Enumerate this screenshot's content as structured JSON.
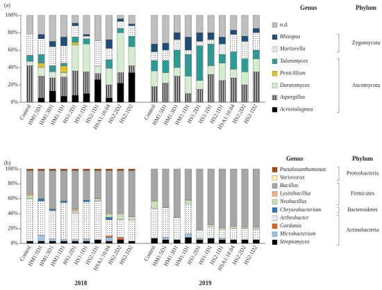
{
  "chart_data": [
    {
      "type": "stacked_bar",
      "label": "(a)",
      "legend_title": "Genus",
      "phylum_title": "Phylum",
      "categories": [
        "Control",
        "HM1:5D1",
        "HM1:3D1",
        "HM1:1D1",
        "HS1:2D1",
        "HS1:1D1",
        "HS2:1D1",
        "HSA1:10.04",
        "HS2:2D2",
        "HS2:1D2",
        "Control",
        "HM1:5D1",
        "HM1:3D1",
        "HM1:1D1",
        "HS1:2D1",
        "HS1:1D1",
        "HS2:1D1",
        "HSA1:10.04",
        "HS2:2D2",
        "HS2:1D2"
      ],
      "ylim": [
        0,
        100
      ],
      "yticks": [
        {
          "value": 0,
          "label": "0%"
        },
        {
          "value": 20,
          "label": "20%"
        },
        {
          "value": 40,
          "label": "40%"
        },
        {
          "value": 60,
          "label": "60%"
        },
        {
          "value": 80,
          "label": "80%"
        },
        {
          "value": 100,
          "label": "100%"
        }
      ],
      "series": [
        {
          "name": "Acrostalagmus",
          "color": "#000000",
          "values": [
            0,
            5,
            13,
            7,
            8,
            10,
            26,
            5,
            22,
            34,
            0,
            0,
            0,
            0,
            0,
            0,
            0,
            0,
            0,
            0
          ]
        },
        {
          "name": "Aspergillus",
          "color": "#a6a6a6",
          "hatch": "vlines",
          "values": [
            42,
            25,
            15,
            22,
            28,
            25,
            7,
            15,
            12,
            8,
            18,
            22,
            30,
            10,
            15,
            32,
            25,
            28,
            20,
            35
          ]
        },
        {
          "name": "Doratomyces",
          "color": "#d4edcf",
          "values": [
            5,
            10,
            7,
            5,
            30,
            32,
            8,
            19,
            46,
            22,
            18,
            12,
            10,
            20,
            10,
            10,
            20,
            10,
            15,
            15
          ]
        },
        {
          "name": "Penicillium",
          "color": "#d9c22e",
          "values": [
            0,
            5,
            0,
            8,
            3,
            0,
            0,
            0,
            0,
            0,
            0,
            0,
            0,
            0,
            0,
            0,
            0,
            0,
            0,
            0
          ]
        },
        {
          "name": "Talaromyces",
          "color": "#2e9a96",
          "values": [
            7,
            10,
            7,
            3,
            6,
            6,
            0,
            10,
            5,
            12,
            12,
            14,
            20,
            25,
            40,
            25,
            10,
            20,
            15,
            10
          ]
        },
        {
          "name": "Mortierella",
          "color": "#ffffff",
          "hatch": "dots",
          "values": [
            25,
            18,
            22,
            20,
            13,
            3,
            30,
            13,
            8,
            12,
            10,
            12,
            12,
            5,
            5,
            5,
            12,
            20,
            20,
            20
          ]
        },
        {
          "name": "Rhizopus",
          "color": "#1f4e79",
          "values": [
            0,
            5,
            6,
            10,
            3,
            2,
            0,
            10,
            3,
            2,
            9,
            8,
            8,
            15,
            10,
            8,
            8,
            5,
            6,
            5
          ]
        },
        {
          "name": "n.d.",
          "color": "#bfbfbf",
          "values": [
            21,
            22,
            30,
            25,
            9,
            22,
            29,
            28,
            4,
            10,
            33,
            32,
            20,
            25,
            20,
            20,
            25,
            17,
            24,
            15
          ]
        }
      ],
      "phyla": [
        "Zygomycota",
        "Ascomycota"
      ]
    },
    {
      "type": "stacked_bar",
      "label": "(b)",
      "legend_title": "Genus",
      "phylum_title": "Phylum",
      "categories": [
        "Control",
        "HM1:5D1",
        "HM1:3D1",
        "HM1:1D1",
        "HS1:2D1",
        "HS1:1D1",
        "HS2:1D1",
        "HSA1:10.04",
        "HS2:2D2",
        "HS2:1D2",
        "Control",
        "HM1:5D1",
        "HM1:3D1",
        "HM1:1D1",
        "HS1:2D1",
        "HS1:1D1",
        "HS2:1D1",
        "HSA1:10.04",
        "HS2:2D2",
        "HS2:1D2"
      ],
      "group_labels": [
        "2018",
        "2019"
      ],
      "ylim": [
        0,
        100
      ],
      "yticks": [
        {
          "value": 0,
          "label": "0%"
        },
        {
          "value": 20,
          "label": "20%"
        },
        {
          "value": 40,
          "label": "40%"
        },
        {
          "value": 60,
          "label": "60%"
        },
        {
          "value": 80,
          "label": "80%"
        },
        {
          "value": 100,
          "label": "100%"
        }
      ],
      "series": [
        {
          "name": "Streptomyces",
          "color": "#000000",
          "values": [
            3,
            3,
            3,
            3,
            3,
            3,
            5,
            3,
            5,
            3,
            7,
            5,
            5,
            8,
            5,
            7,
            5,
            5,
            5,
            5
          ]
        },
        {
          "name": "Microbacterium",
          "color": "#9dc3e6",
          "values": [
            0,
            8,
            3,
            2,
            2,
            3,
            0,
            5,
            0,
            0,
            0,
            3,
            0,
            5,
            2,
            0,
            2,
            0,
            0,
            0
          ]
        },
        {
          "name": "Gordonia",
          "color": "#e0641f",
          "values": [
            0,
            0,
            0,
            0,
            0,
            0,
            0,
            2,
            3,
            0,
            0,
            0,
            0,
            0,
            0,
            0,
            0,
            0,
            0,
            0
          ]
        },
        {
          "name": "Arthrobacter",
          "color": "#ffffff",
          "hatch": "dots",
          "values": [
            57,
            46,
            38,
            50,
            36,
            50,
            52,
            22,
            24,
            28,
            40,
            40,
            30,
            40,
            10,
            15,
            12,
            15,
            15,
            14
          ]
        },
        {
          "name": "Chryseobacterium",
          "color": "#2e75b6",
          "values": [
            0,
            3,
            2,
            2,
            0,
            2,
            0,
            3,
            0,
            0,
            0,
            0,
            0,
            0,
            0,
            0,
            0,
            0,
            0,
            0
          ]
        },
        {
          "name": "Neobacillus",
          "color": "#c5e0b4",
          "values": [
            5,
            0,
            0,
            0,
            3,
            0,
            3,
            5,
            8,
            5,
            10,
            0,
            0,
            5,
            2,
            3,
            2,
            3,
            2,
            3
          ]
        },
        {
          "name": "Lysinibacillus",
          "color": "#f4b183",
          "values": [
            2,
            0,
            0,
            0,
            2,
            0,
            0,
            0,
            0,
            0,
            0,
            0,
            0,
            0,
            0,
            0,
            0,
            0,
            0,
            0
          ]
        },
        {
          "name": "Bacillus",
          "color": "#a6a6a6",
          "values": [
            31,
            38,
            52,
            41,
            52,
            40,
            38,
            58,
            58,
            62,
            43,
            52,
            65,
            42,
            81,
            75,
            79,
            77,
            78,
            78
          ]
        },
        {
          "name": "Variovorax",
          "color": "#fff2a8",
          "values": [
            0,
            0,
            0,
            0,
            0,
            0,
            0,
            0,
            0,
            0,
            0,
            0,
            0,
            0,
            0,
            0,
            0,
            0,
            0,
            0
          ]
        },
        {
          "name": "Pseudoxanthomonas",
          "color": "#9c4a12",
          "values": [
            2,
            2,
            2,
            2,
            2,
            2,
            2,
            2,
            2,
            2,
            0,
            0,
            0,
            0,
            0,
            0,
            0,
            0,
            0,
            0
          ]
        }
      ],
      "phyla": [
        "Proteobacteria",
        "Firmicutes",
        "Bacteroidetes",
        "Actinobacteria"
      ]
    }
  ]
}
